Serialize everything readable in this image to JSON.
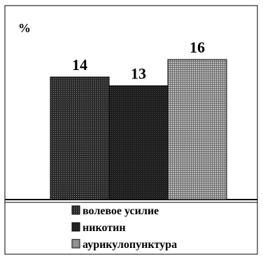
{
  "chart_data": {
    "type": "bar",
    "title": "",
    "ylabel": "%",
    "xlabel": "",
    "categories": [
      "волевое усилие",
      "никотин",
      "аурикулопунктура"
    ],
    "values": [
      14,
      13,
      16
    ],
    "ylim": [
      0,
      20
    ],
    "grid": false,
    "legend": {
      "placement": "bottom",
      "entries": [
        "волевое усилие",
        "никотин",
        "аурикулопунктура"
      ]
    }
  }
}
